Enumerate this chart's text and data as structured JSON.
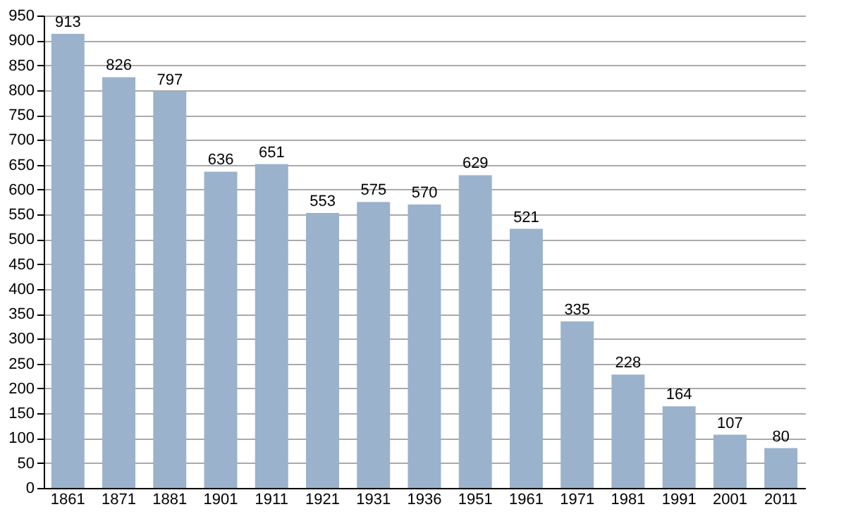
{
  "chart_data": {
    "type": "bar",
    "categories": [
      "1861",
      "1871",
      "1881",
      "1901",
      "1911",
      "1921",
      "1931",
      "1936",
      "1951",
      "1961",
      "1971",
      "1981",
      "1991",
      "2001",
      "2011"
    ],
    "values": [
      913,
      826,
      797,
      636,
      651,
      553,
      575,
      570,
      629,
      521,
      335,
      228,
      164,
      107,
      80
    ],
    "color": "#9ab2cc",
    "ylim": [
      0,
      950
    ],
    "yticks": [
      0,
      50,
      100,
      150,
      200,
      250,
      300,
      350,
      400,
      450,
      500,
      550,
      600,
      650,
      700,
      750,
      800,
      850,
      900,
      950
    ],
    "grid": "y",
    "data_labels": true
  }
}
